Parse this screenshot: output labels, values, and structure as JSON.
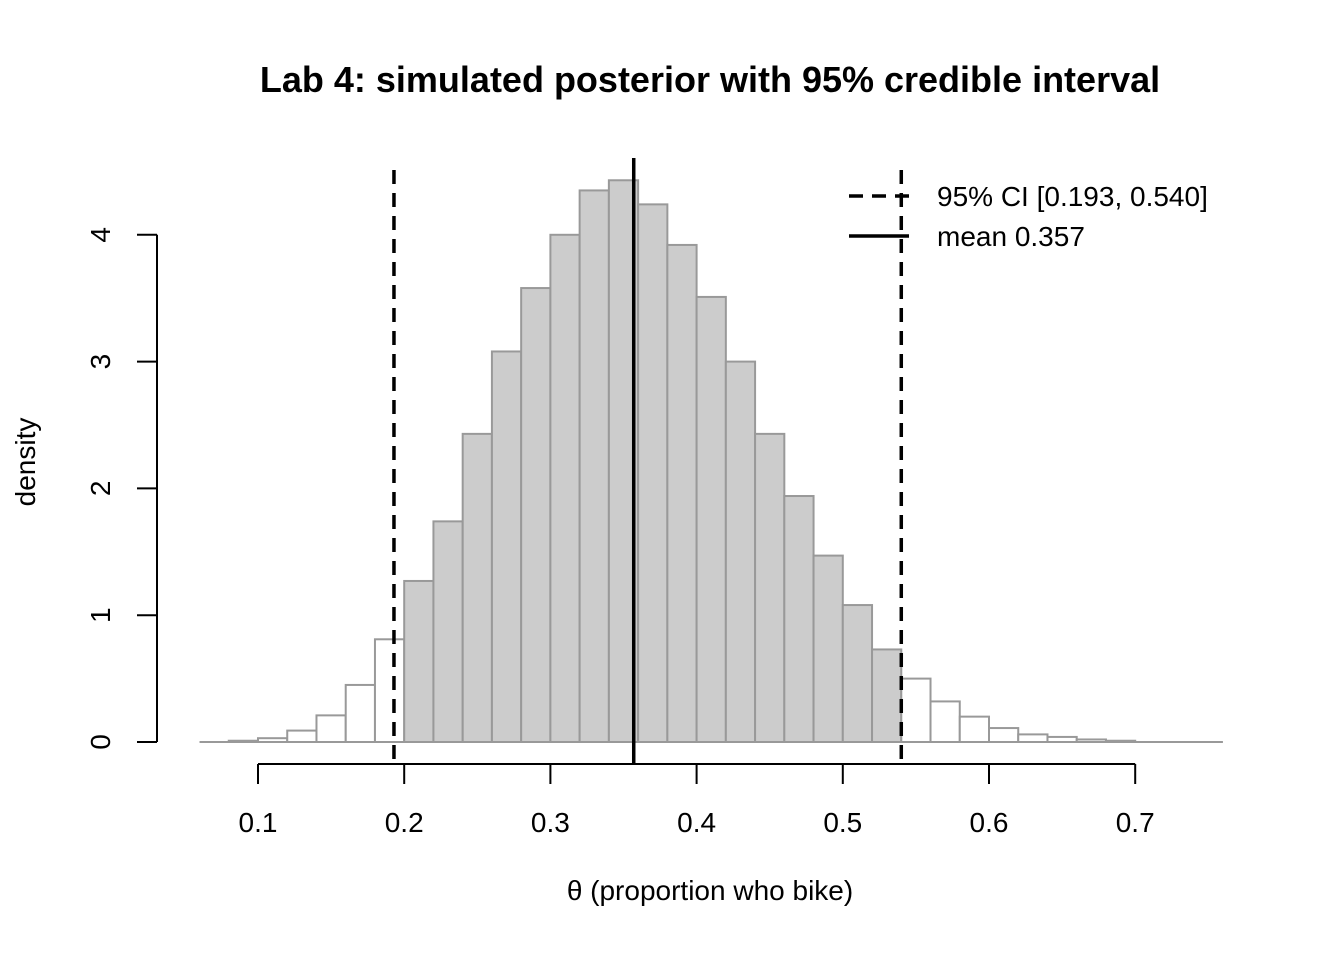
{
  "chart_data": {
    "type": "bar",
    "title": "Lab 4: simulated posterior with 95% credible interval",
    "xlabel": "θ (proportion who bike)",
    "ylabel": "density",
    "xlim": [
      0.06,
      0.76
    ],
    "ylim": [
      0,
      4.5
    ],
    "x_ticks": [
      0.1,
      0.2,
      0.3,
      0.4,
      0.5,
      0.6,
      0.7
    ],
    "x_tick_labels": [
      "0.1",
      "0.2",
      "0.3",
      "0.4",
      "0.5",
      "0.6",
      "0.7"
    ],
    "y_ticks": [
      0,
      1,
      2,
      3,
      4
    ],
    "y_tick_labels": [
      "0",
      "1",
      "2",
      "3",
      "4"
    ],
    "bin_width": 0.02,
    "bins": [
      {
        "start": 0.06,
        "density": 0.0
      },
      {
        "start": 0.08,
        "density": 0.01
      },
      {
        "start": 0.1,
        "density": 0.03
      },
      {
        "start": 0.12,
        "density": 0.09
      },
      {
        "start": 0.14,
        "density": 0.21
      },
      {
        "start": 0.16,
        "density": 0.45
      },
      {
        "start": 0.18,
        "density": 0.81
      },
      {
        "start": 0.2,
        "density": 1.27
      },
      {
        "start": 0.22,
        "density": 1.74
      },
      {
        "start": 0.24,
        "density": 2.43
      },
      {
        "start": 0.26,
        "density": 3.08
      },
      {
        "start": 0.28,
        "density": 3.58
      },
      {
        "start": 0.3,
        "density": 4.0
      },
      {
        "start": 0.32,
        "density": 4.35
      },
      {
        "start": 0.34,
        "density": 4.43
      },
      {
        "start": 0.36,
        "density": 4.24
      },
      {
        "start": 0.38,
        "density": 3.92
      },
      {
        "start": 0.4,
        "density": 3.51
      },
      {
        "start": 0.42,
        "density": 3.0
      },
      {
        "start": 0.44,
        "density": 2.43
      },
      {
        "start": 0.46,
        "density": 1.94
      },
      {
        "start": 0.48,
        "density": 1.47
      },
      {
        "start": 0.5,
        "density": 1.08
      },
      {
        "start": 0.52,
        "density": 0.73
      },
      {
        "start": 0.54,
        "density": 0.5
      },
      {
        "start": 0.56,
        "density": 0.32
      },
      {
        "start": 0.58,
        "density": 0.2
      },
      {
        "start": 0.6,
        "density": 0.11
      },
      {
        "start": 0.62,
        "density": 0.06
      },
      {
        "start": 0.64,
        "density": 0.04
      },
      {
        "start": 0.66,
        "density": 0.02
      },
      {
        "start": 0.68,
        "density": 0.01
      },
      {
        "start": 0.7,
        "density": 0.0
      },
      {
        "start": 0.72,
        "density": 0.0
      },
      {
        "start": 0.74,
        "density": 0.0
      }
    ],
    "highlight_range": [
      0.2,
      0.54
    ],
    "ci_lower": 0.193,
    "ci_upper": 0.54,
    "mean": 0.357,
    "legend": {
      "position": "top-right",
      "entries": [
        {
          "label": "95% CI [0.193, 0.540]",
          "line": "dashed"
        },
        {
          "label": "mean 0.357",
          "line": "solid"
        }
      ]
    },
    "colors": {
      "inside_fill": "#cccccc",
      "outside_fill": "#ffffff",
      "bar_border": "#999999",
      "line": "#000000"
    },
    "grid": false
  }
}
